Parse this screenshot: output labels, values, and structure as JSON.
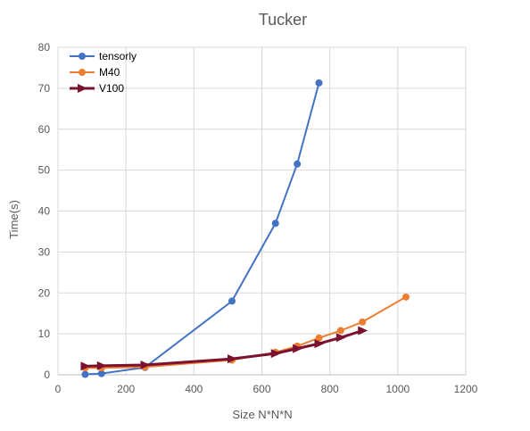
{
  "chart_data": {
    "type": "line",
    "title": "Tucker",
    "xlabel": "Size N*N*N",
    "ylabel": "Time(s)",
    "xlim": [
      0,
      1200
    ],
    "ylim": [
      0,
      80
    ],
    "x_ticks": [
      0,
      200,
      400,
      600,
      800,
      1000,
      1200
    ],
    "y_ticks": [
      0,
      10,
      20,
      30,
      40,
      50,
      60,
      70,
      80
    ],
    "grid": true,
    "legend_position": "top-left",
    "series": [
      {
        "name": "tensorly",
        "color": "#4472C4",
        "marker": "circle",
        "points": [
          [
            80,
            0.1
          ],
          [
            128,
            0.3
          ],
          [
            256,
            1.8
          ],
          [
            512,
            18
          ],
          [
            640,
            37
          ],
          [
            704,
            51.5
          ],
          [
            768,
            71.3
          ]
        ]
      },
      {
        "name": "M40",
        "color": "#ED7D31",
        "marker": "circle",
        "points": [
          [
            80,
            1.7
          ],
          [
            128,
            1.7
          ],
          [
            256,
            1.9
          ],
          [
            512,
            3.6
          ],
          [
            640,
            5.5
          ],
          [
            704,
            7
          ],
          [
            768,
            9
          ],
          [
            832,
            10.8
          ],
          [
            896,
            12.9
          ],
          [
            1024,
            19
          ]
        ]
      },
      {
        "name": "V100",
        "color": "#7B1230",
        "marker": "triangle-right",
        "points": [
          [
            80,
            2.1
          ],
          [
            128,
            2.2
          ],
          [
            256,
            2.4
          ],
          [
            512,
            3.9
          ],
          [
            640,
            5.2
          ],
          [
            704,
            6.4
          ],
          [
            768,
            7.6
          ],
          [
            832,
            9.1
          ],
          [
            896,
            10.8
          ]
        ]
      }
    ]
  }
}
